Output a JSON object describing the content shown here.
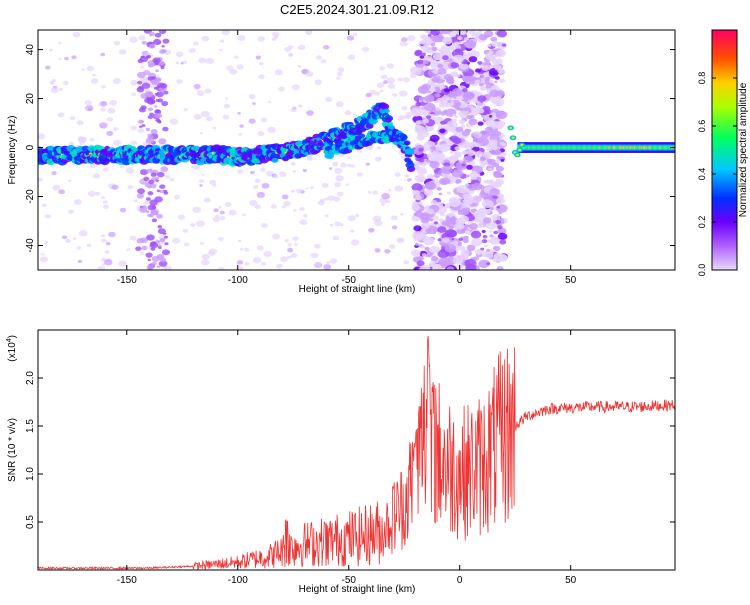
{
  "title": "C2E5.2024.301.21.09.R12",
  "chart_data": [
    {
      "type": "heatmap",
      "xlabel": "Height of straight line (km)",
      "ylabel": "Frequency (Hz)",
      "xlim": [
        -190,
        97
      ],
      "ylim": [
        -50,
        48
      ],
      "xticks": [
        -150,
        -100,
        -50,
        0,
        50
      ],
      "xtick_labels": [
        "-150",
        "-100",
        "-50",
        "0",
        "50"
      ],
      "yticks": [
        -40,
        -20,
        0,
        20,
        40
      ],
      "ytick_labels": [
        "-40",
        "-20",
        "0",
        "20",
        "40"
      ],
      "colorbar": {
        "label": "Normalized spectral amplitude",
        "range": [
          0,
          1
        ],
        "ticks": [
          0.0,
          0.2,
          0.4,
          0.6,
          0.8
        ],
        "tick_labels": [
          "0.0",
          "0.2",
          "0.4",
          "0.6",
          "0.8"
        ]
      },
      "trace_points": [
        [
          -190,
          -3
        ],
        [
          -170,
          -3
        ],
        [
          -150,
          -3
        ],
        [
          -130,
          -3
        ],
        [
          -110,
          -3
        ],
        [
          -100,
          -4
        ],
        [
          -90,
          -3
        ],
        [
          -80,
          -2
        ],
        [
          -70,
          0
        ],
        [
          -60,
          3
        ],
        [
          -50,
          7
        ],
        [
          -40,
          12
        ],
        [
          -35,
          16
        ],
        [
          -30,
          6
        ],
        [
          -25,
          2
        ],
        [
          -22,
          -6
        ]
      ],
      "trace_points_2": [
        [
          -60,
          -2
        ],
        [
          -50,
          1
        ],
        [
          -40,
          4
        ],
        [
          -30,
          5
        ],
        [
          -25,
          4
        ]
      ],
      "stable_line": {
        "x_from": 26,
        "x_to": 97,
        "freq": 0
      }
    },
    {
      "type": "line",
      "xlabel": "Height of straight line (km)",
      "ylabel": "SNR (10 * v/v)",
      "scale_label_base": "(x10",
      "scale_label_exp": "4",
      "scale_label_end": ")",
      "xlim": [
        -190,
        97
      ],
      "ylim": [
        0,
        2.5
      ],
      "xticks": [
        -150,
        -100,
        -50,
        0,
        50
      ],
      "xtick_labels": [
        "-150",
        "-100",
        "-50",
        "0",
        "50"
      ],
      "yticks": [
        0.5,
        1.0,
        1.5,
        2.0
      ],
      "ytick_labels": [
        "0.5",
        "1.0",
        "1.5",
        "2.0"
      ],
      "color": "#ee3333",
      "envelope": [
        [
          -190,
          0.02
        ],
        [
          -140,
          0.02
        ],
        [
          -120,
          0.04
        ],
        [
          -100,
          0.08
        ],
        [
          -85,
          0.15
        ],
        [
          -75,
          0.25
        ],
        [
          -60,
          0.3
        ],
        [
          -45,
          0.35
        ],
        [
          -35,
          0.4
        ],
        [
          -25,
          0.7
        ],
        [
          -20,
          1.0
        ],
        [
          -14,
          1.6
        ],
        [
          -10,
          1.2
        ],
        [
          -5,
          1.1
        ],
        [
          0,
          1.0
        ],
        [
          10,
          1.1
        ],
        [
          20,
          1.4
        ],
        [
          30,
          1.6
        ],
        [
          40,
          1.68
        ],
        [
          60,
          1.7
        ],
        [
          80,
          1.7
        ],
        [
          97,
          1.72
        ]
      ],
      "peaks": [
        [
          -20,
          1.5
        ],
        [
          -14,
          2.5
        ],
        [
          -12,
          2.0
        ],
        [
          -30,
          0.95
        ],
        [
          -78,
          0.55
        ],
        [
          -60,
          0.5
        ]
      ]
    }
  ]
}
